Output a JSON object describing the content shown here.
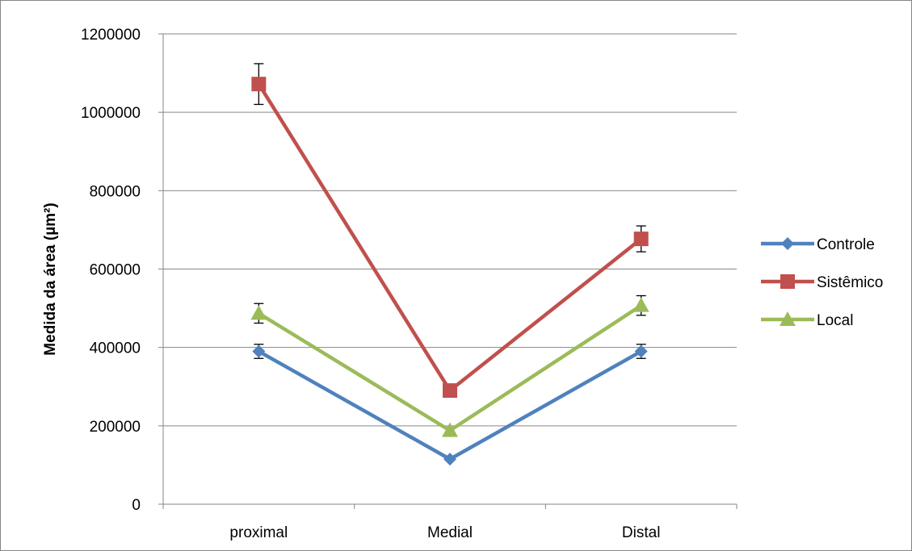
{
  "chart_data": {
    "type": "line",
    "title": "",
    "xlabel": "",
    "ylabel": "Medida da área (µm²)",
    "categories": [
      "proximal",
      "Medial",
      "Distal"
    ],
    "ylim": [
      0,
      1200000
    ],
    "yticks": [
      "0",
      "200000",
      "400000",
      "600000",
      "800000",
      "1000000",
      "1200000"
    ],
    "grid": true,
    "legend_position": "right",
    "series": [
      {
        "name": "Controle",
        "color": "#4f81bd",
        "marker": "diamond",
        "values": [
          390000,
          115000,
          390000
        ],
        "error": [
          18000,
          0,
          18000
        ]
      },
      {
        "name": "Sistêmico",
        "color": "#c0504d",
        "marker": "square",
        "values": [
          1072000,
          290000,
          677000
        ],
        "error": [
          52000,
          0,
          33000
        ]
      },
      {
        "name": "Local",
        "color": "#9bbb59",
        "marker": "triangle",
        "values": [
          487000,
          188000,
          507000
        ],
        "error": [
          25000,
          0,
          25000
        ]
      }
    ]
  }
}
